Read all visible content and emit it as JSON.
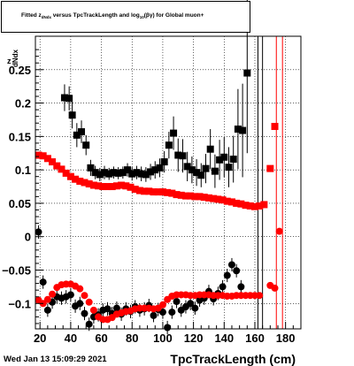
{
  "title": {
    "prefix": "Fitted  z",
    "sub1": "dNdx",
    "middle": "  versus TpcTrackLength and log",
    "sub2": "10",
    "suffix": "(βγ) for Global muon+"
  },
  "footer": {
    "timestamp": "Wed Jan 13 15:09:29 2021"
  },
  "colors": {
    "black_series": "#000000",
    "red_series": "#ff0000",
    "background": "#ffffff",
    "grid": "#000000"
  },
  "chart_data": {
    "type": "scatter",
    "title": "Fitted  z dNdx  versus TpcTrackLength and log10(βγ) for Global muon+",
    "xlabel": "TpcTrackLength (cm)",
    "ylabel": "dNdx",
    "xlim": [
      17,
      190
    ],
    "ylim": [
      -0.138,
      0.3
    ],
    "xticks": [
      20,
      40,
      60,
      80,
      100,
      120,
      140,
      160,
      180
    ],
    "yticks": [
      -0.1,
      -0.05,
      0,
      0.05,
      0.1,
      0.15,
      0.2,
      0.25
    ],
    "ytick_labels": [
      "−0.1",
      "−0.05",
      "0",
      "0.05",
      "0.1",
      "0.15",
      "0.2",
      "0.25"
    ],
    "grid": true,
    "series": [
      {
        "color": "#000000",
        "marker": "square",
        "points": [
          [
            36,
            0.208,
            0.02
          ],
          [
            39,
            0.207,
            0.018
          ],
          [
            41,
            0.182,
            0.02
          ],
          [
            44,
            0.152,
            0.018
          ],
          [
            47,
            0.157,
            0.017
          ],
          [
            50,
            0.137,
            0.015
          ],
          [
            53,
            0.103,
            0.012
          ],
          [
            56,
            0.096,
            0.01
          ],
          [
            59,
            0.093,
            0.01
          ],
          [
            62,
            0.096,
            0.01
          ],
          [
            65,
            0.094,
            0.009
          ],
          [
            68,
            0.096,
            0.009
          ],
          [
            71,
            0.095,
            0.009
          ],
          [
            74,
            0.096,
            0.009
          ],
          [
            77,
            0.1,
            0.01
          ],
          [
            80,
            0.094,
            0.01
          ],
          [
            83,
            0.096,
            0.01
          ],
          [
            86,
            0.094,
            0.011
          ],
          [
            89,
            0.093,
            0.011
          ],
          [
            92,
            0.097,
            0.012
          ],
          [
            95,
            0.1,
            0.013
          ],
          [
            98,
            0.103,
            0.014
          ],
          [
            101,
            0.112,
            0.016
          ],
          [
            104,
            0.137,
            0.02
          ],
          [
            107,
            0.155,
            0.025
          ],
          [
            110,
            0.122,
            0.025
          ],
          [
            113,
            0.121,
            0.025
          ],
          [
            116,
            0.105,
            0.022
          ],
          [
            119,
            0.1,
            0.02
          ],
          [
            122,
            0.096,
            0.02
          ],
          [
            125,
            0.092,
            0.018
          ],
          [
            128,
            0.102,
            0.022
          ],
          [
            131,
            0.131,
            0.03
          ],
          [
            134,
            0.098,
            0.025
          ],
          [
            137,
            0.115,
            0.03
          ],
          [
            140,
            0.119,
            0.03
          ],
          [
            143,
            0.104,
            0.03
          ],
          [
            146,
            0.116,
            0.035
          ],
          [
            149,
            0.161,
            0.06
          ],
          [
            152,
            0.159,
            0.07
          ],
          [
            155,
            0.245,
            0.12
          ]
        ]
      },
      {
        "color": "#000000",
        "marker": "circle",
        "points": [
          [
            19,
            0.007,
            0.01
          ],
          [
            22,
            -0.068,
            0.01
          ],
          [
            25,
            -0.11,
            0.01
          ],
          [
            28,
            -0.098,
            0.01
          ],
          [
            31,
            -0.09,
            0.01
          ],
          [
            34,
            -0.092,
            0.01
          ],
          [
            37,
            -0.09,
            0.01
          ],
          [
            40,
            -0.087,
            0.01
          ],
          [
            43,
            -0.104,
            0.01
          ],
          [
            46,
            -0.1,
            0.01
          ],
          [
            49,
            -0.115,
            0.01
          ],
          [
            52,
            -0.131,
            0.01
          ],
          [
            55,
            -0.12,
            0.01
          ],
          [
            58,
            -0.117,
            0.01
          ],
          [
            61,
            -0.11,
            0.01
          ],
          [
            64,
            -0.108,
            0.01
          ],
          [
            67,
            -0.115,
            0.01
          ],
          [
            70,
            -0.107,
            0.01
          ],
          [
            73,
            -0.116,
            0.01
          ],
          [
            76,
            -0.108,
            0.01
          ],
          [
            79,
            -0.112,
            0.01
          ],
          [
            82,
            -0.105,
            0.01
          ],
          [
            85,
            -0.11,
            0.01
          ],
          [
            88,
            -0.108,
            0.01
          ],
          [
            91,
            -0.103,
            0.01
          ],
          [
            94,
            -0.118,
            0.01
          ],
          [
            97,
            -0.109,
            0.01
          ],
          [
            100,
            -0.113,
            0.01
          ],
          [
            103,
            -0.136,
            0.01
          ],
          [
            106,
            -0.113,
            0.01
          ],
          [
            109,
            -0.097,
            0.01
          ],
          [
            112,
            -0.11,
            0.01
          ],
          [
            115,
            -0.105,
            0.01
          ],
          [
            118,
            -0.1,
            0.01
          ],
          [
            121,
            -0.107,
            0.01
          ],
          [
            124,
            -0.095,
            0.01
          ],
          [
            127,
            -0.092,
            0.01
          ],
          [
            130,
            -0.082,
            0.01
          ],
          [
            133,
            -0.093,
            0.01
          ],
          [
            136,
            -0.085,
            0.01
          ],
          [
            139,
            -0.075,
            0.01
          ],
          [
            142,
            -0.058,
            0.01
          ],
          [
            145,
            -0.042,
            0.01
          ],
          [
            148,
            -0.051,
            0.01
          ],
          [
            151,
            -0.075,
            0.01
          ]
        ]
      },
      {
        "color": "#ff0000",
        "marker": "square",
        "points": [
          [
            19,
            0.122
          ],
          [
            22,
            0.121
          ],
          [
            25,
            0.117
          ],
          [
            28,
            0.112
          ],
          [
            31,
            0.106
          ],
          [
            34,
            0.101
          ],
          [
            37,
            0.095
          ],
          [
            40,
            0.09
          ],
          [
            43,
            0.086
          ],
          [
            46,
            0.083
          ],
          [
            49,
            0.081
          ],
          [
            52,
            0.079
          ],
          [
            55,
            0.077
          ],
          [
            58,
            0.076
          ],
          [
            61,
            0.075
          ],
          [
            64,
            0.075
          ],
          [
            67,
            0.075
          ],
          [
            70,
            0.076
          ],
          [
            73,
            0.077
          ],
          [
            76,
            0.076
          ],
          [
            79,
            0.074
          ],
          [
            82,
            0.071
          ],
          [
            85,
            0.069
          ],
          [
            88,
            0.068
          ],
          [
            91,
            0.068
          ],
          [
            94,
            0.067
          ],
          [
            97,
            0.067
          ],
          [
            100,
            0.067
          ],
          [
            103,
            0.066
          ],
          [
            106,
            0.065
          ],
          [
            109,
            0.063
          ],
          [
            112,
            0.062
          ],
          [
            115,
            0.061
          ],
          [
            118,
            0.061
          ],
          [
            121,
            0.06
          ],
          [
            124,
            0.06
          ],
          [
            127,
            0.059
          ],
          [
            130,
            0.058
          ],
          [
            133,
            0.057
          ],
          [
            136,
            0.056
          ],
          [
            139,
            0.055
          ],
          [
            142,
            0.053
          ],
          [
            145,
            0.052
          ],
          [
            148,
            0.05
          ],
          [
            151,
            0.049
          ],
          [
            154,
            0.047
          ],
          [
            157,
            0.046
          ],
          [
            160,
            0.045
          ],
          [
            163,
            0.046
          ],
          [
            166,
            0.048
          ],
          [
            170,
            0.102
          ],
          [
            173,
            0.165
          ]
        ]
      },
      {
        "color": "#ff0000",
        "marker": "circle",
        "points": [
          [
            19,
            -0.095
          ],
          [
            22,
            -0.1
          ],
          [
            25,
            -0.094
          ],
          [
            28,
            -0.086
          ],
          [
            31,
            -0.076
          ],
          [
            34,
            -0.072
          ],
          [
            37,
            -0.071
          ],
          [
            40,
            -0.071
          ],
          [
            43,
            -0.074
          ],
          [
            46,
            -0.078
          ],
          [
            49,
            -0.088
          ],
          [
            52,
            -0.098
          ],
          [
            55,
            -0.11
          ],
          [
            58,
            -0.12
          ],
          [
            61,
            -0.124
          ],
          [
            64,
            -0.124
          ],
          [
            67,
            -0.121
          ],
          [
            70,
            -0.116
          ],
          [
            73,
            -0.114
          ],
          [
            76,
            -0.112
          ],
          [
            79,
            -0.111
          ],
          [
            82,
            -0.108
          ],
          [
            85,
            -0.107
          ],
          [
            88,
            -0.107
          ],
          [
            91,
            -0.107
          ],
          [
            94,
            -0.108
          ],
          [
            97,
            -0.107
          ],
          [
            100,
            -0.102
          ],
          [
            103,
            -0.094
          ],
          [
            106,
            -0.089
          ],
          [
            109,
            -0.087
          ],
          [
            112,
            -0.087
          ],
          [
            115,
            -0.087
          ],
          [
            118,
            -0.088
          ],
          [
            121,
            -0.088
          ],
          [
            124,
            -0.087
          ],
          [
            127,
            -0.087
          ],
          [
            130,
            -0.087
          ],
          [
            133,
            -0.088
          ],
          [
            136,
            -0.088
          ],
          [
            139,
            -0.088
          ],
          [
            142,
            -0.089
          ],
          [
            145,
            -0.089
          ],
          [
            148,
            -0.088
          ],
          [
            151,
            -0.088
          ],
          [
            154,
            -0.088
          ],
          [
            157,
            -0.088
          ],
          [
            160,
            -0.088
          ],
          [
            163,
            -0.088
          ],
          [
            170,
            -0.073
          ],
          [
            173,
            -0.077
          ],
          [
            176,
            0.008
          ]
        ]
      }
    ],
    "vertical_lines": [
      {
        "x": 162,
        "color": "#000000"
      },
      {
        "x": 165,
        "color": "#000000"
      },
      {
        "x": 174,
        "color": "#ff0000"
      },
      {
        "x": 178,
        "color": "#ff0000"
      }
    ]
  }
}
